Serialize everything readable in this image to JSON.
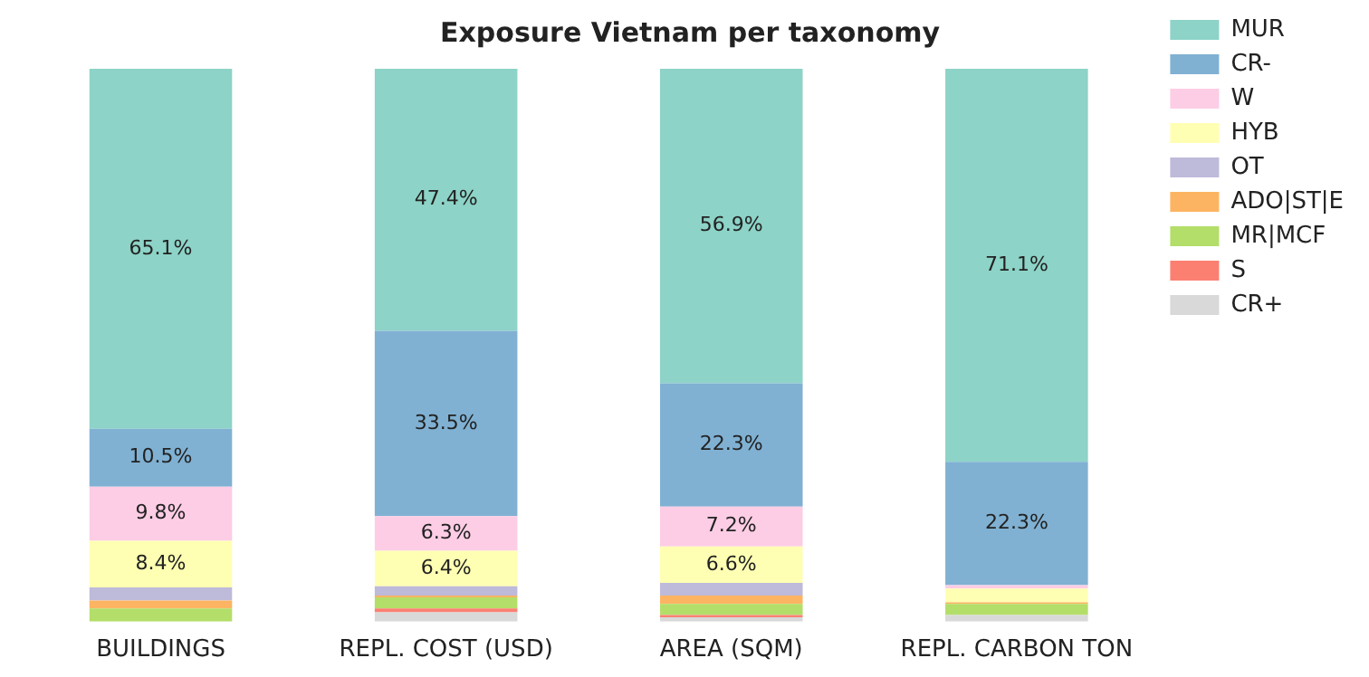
{
  "chart_data": {
    "type": "bar",
    "title": "Exposure Vietnam per taxonomy",
    "categories": [
      "BUILDINGS",
      "REPL. COST (USD)",
      "AREA (SQM)",
      "REPL. CARBON TON"
    ],
    "stacked": true,
    "ylim": [
      0,
      100
    ],
    "tick_labels": "x",
    "grid": false,
    "legend": "top right",
    "series": [
      {
        "name": "CR+",
        "color": "#d9d9d9",
        "values": [
          0,
          1.7,
          0.8,
          1.2
        ],
        "value_labels": [
          null,
          null,
          null,
          null
        ]
      },
      {
        "name": "S",
        "color": "#fb8072",
        "values": [
          0,
          0.7,
          0.4,
          0
        ],
        "value_labels": [
          null,
          null,
          null,
          null
        ]
      },
      {
        "name": "MR|MCF",
        "color": "#b3de69",
        "values": [
          2.4,
          2.0,
          2.0,
          2.0
        ],
        "value_labels": [
          null,
          null,
          null,
          null
        ]
      },
      {
        "name": "ADO|ST|E",
        "color": "#fdb462",
        "values": [
          1.4,
          0.3,
          1.5,
          0.3
        ],
        "value_labels": [
          null,
          null,
          null,
          null
        ]
      },
      {
        "name": "OT",
        "color": "#bebada",
        "values": [
          2.4,
          1.7,
          2.3,
          0
        ],
        "value_labels": [
          null,
          null,
          null,
          null
        ]
      },
      {
        "name": "HYB",
        "color": "#ffffb3",
        "values": [
          8.4,
          6.4,
          6.6,
          2.5
        ],
        "value_labels": [
          "8.4%",
          "6.4%",
          "6.6%",
          null
        ]
      },
      {
        "name": "W",
        "color": "#fccde5",
        "values": [
          9.8,
          6.3,
          7.2,
          0.6
        ],
        "value_labels": [
          "9.8%",
          "6.3%",
          "7.2%",
          null
        ]
      },
      {
        "name": "CR-",
        "color": "#80b1d3",
        "values": [
          10.5,
          33.5,
          22.3,
          22.3
        ],
        "value_labels": [
          "10.5%",
          "33.5%",
          "22.3%",
          "22.3%"
        ]
      },
      {
        "name": "MUR",
        "color": "#8dd3c7",
        "values": [
          65.1,
          47.4,
          56.9,
          71.1
        ],
        "value_labels": [
          "65.1%",
          "47.4%",
          "56.9%",
          "71.1%"
        ]
      }
    ]
  }
}
